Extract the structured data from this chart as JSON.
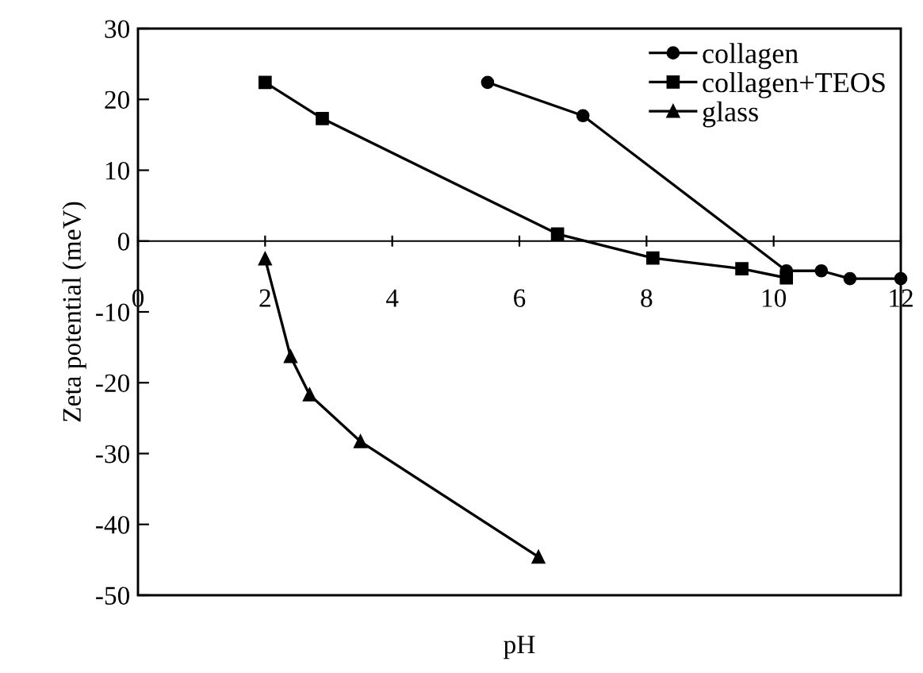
{
  "chart_data": {
    "type": "line",
    "xlabel": "pH",
    "ylabel": "Zeta potential (meV)",
    "xlim": [
      0,
      12
    ],
    "ylim": [
      -50,
      30
    ],
    "xticks": [
      0,
      2,
      4,
      6,
      8,
      10,
      12
    ],
    "yticks": [
      -50,
      -40,
      -30,
      -20,
      -10,
      0,
      10,
      20,
      30
    ],
    "grid": false,
    "legend": "top right",
    "line_style": "solid",
    "series": [
      {
        "name": "collagen",
        "color": "#000000",
        "marker": "circle",
        "x": [
          5.5,
          7.0,
          10.2,
          10.75,
          11.2,
          12.0
        ],
        "values": [
          22.4,
          17.7,
          -4.2,
          -4.2,
          -5.3,
          -5.3
        ]
      },
      {
        "name": "collagen+TEOS",
        "color": "#000000",
        "marker": "square",
        "x": [
          2.0,
          2.9,
          6.6,
          8.1,
          9.5,
          10.2
        ],
        "values": [
          22.4,
          17.3,
          1.0,
          -2.4,
          -3.9,
          -5.2
        ]
      },
      {
        "name": "glass",
        "color": "#000000",
        "marker": "triangle",
        "x": [
          2.0,
          2.4,
          2.7,
          3.5,
          6.3
        ],
        "values": [
          -2.5,
          -16.3,
          -21.7,
          -28.3,
          -44.6
        ]
      }
    ]
  }
}
